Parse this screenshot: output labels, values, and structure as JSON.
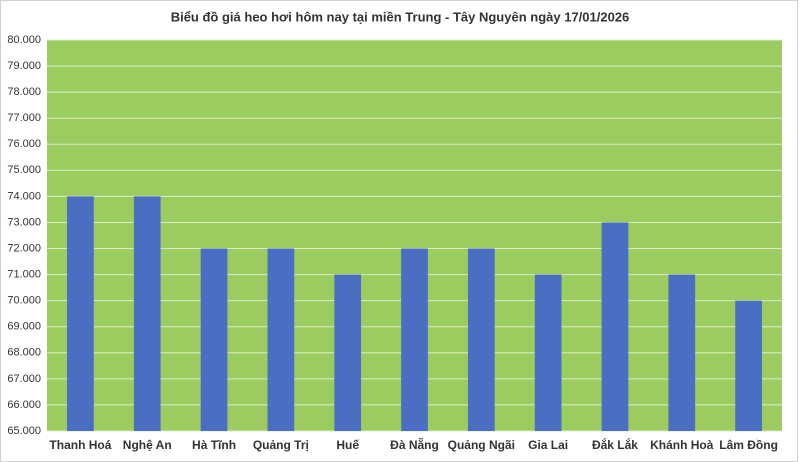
{
  "chart_data": {
    "type": "bar",
    "title": "Biểu đồ giá heo hơi hôm nay tại miền Trung - Tây Nguyên ngày 17/01/2026",
    "categories": [
      "Thanh Hoá",
      "Nghệ An",
      "Hà Tĩnh",
      "Quảng Trị",
      "Huế",
      "Đà Nẵng",
      "Quảng Ngãi",
      "Gia Lai",
      "Đắk Lắk",
      "Khánh Hoà",
      "Lâm Đồng"
    ],
    "values": [
      74000,
      74000,
      72000,
      72000,
      71000,
      72000,
      72000,
      71000,
      73000,
      71000,
      70000
    ],
    "color": "#4a6fc2",
    "plot_background": "#9ccc60",
    "ylim": [
      65000,
      80000
    ],
    "yticks": [
      {
        "value": 65000,
        "label": "65.000"
      },
      {
        "value": 66000,
        "label": "66.000"
      },
      {
        "value": 67000,
        "label": "67.000"
      },
      {
        "value": 68000,
        "label": "68.000"
      },
      {
        "value": 69000,
        "label": "69.000"
      },
      {
        "value": 70000,
        "label": "70.000"
      },
      {
        "value": 71000,
        "label": "71.000"
      },
      {
        "value": 72000,
        "label": "72.000"
      },
      {
        "value": 73000,
        "label": "73.000"
      },
      {
        "value": 74000,
        "label": "74.000"
      },
      {
        "value": 75000,
        "label": "75.000"
      },
      {
        "value": 76000,
        "label": "76.000"
      },
      {
        "value": 77000,
        "label": "77.000"
      },
      {
        "value": 78000,
        "label": "78.000"
      },
      {
        "value": 79000,
        "label": "79.000"
      },
      {
        "value": 80000,
        "label": "80.000"
      }
    ],
    "grid": true
  }
}
